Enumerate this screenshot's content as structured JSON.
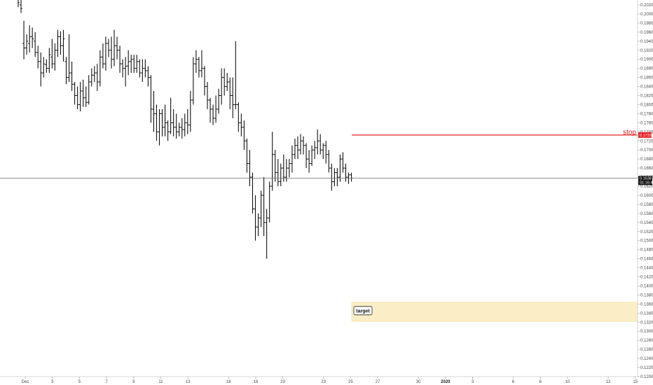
{
  "chart_data": {
    "type": "ohlc",
    "timeframe_note": "",
    "yaxis": {
      "min": 0.12,
      "max": 0.203,
      "ticks": [
        "0.2020",
        "0.2000",
        "0.1980",
        "0.1960",
        "0.1940",
        "0.1920",
        "0.1900",
        "0.1880",
        "0.1860",
        "0.1840",
        "0.1820",
        "0.1800",
        "0.1780",
        "0.1760",
        "0.1740",
        "0.1720",
        "0.1700",
        "0.1680",
        "0.1660",
        "0.1640",
        "0.1620",
        "0.1600",
        "0.1580",
        "0.1560",
        "0.1540",
        "0.1520",
        "0.1500",
        "0.1480",
        "0.1460",
        "0.1440",
        "0.1420",
        "0.1400",
        "0.1380",
        "0.1360",
        "0.1340",
        "0.1320",
        "0.1300",
        "0.1280",
        "0.1260",
        "0.1240",
        "0.1220",
        "0.1200"
      ]
    },
    "xaxis": {
      "ticks": [
        {
          "label": "Dec",
          "x": 0
        },
        {
          "label": "3",
          "x": 2
        },
        {
          "label": "5",
          "x": 4
        },
        {
          "label": "7",
          "x": 6
        },
        {
          "label": "9",
          "x": 8
        },
        {
          "label": "11",
          "x": 10
        },
        {
          "label": "13",
          "x": 12
        },
        {
          "label": "16",
          "x": 15
        },
        {
          "label": "18",
          "x": 17
        },
        {
          "label": "20",
          "x": 19
        },
        {
          "label": "23",
          "x": 22
        },
        {
          "label": "25",
          "x": 24
        },
        {
          "label": "27",
          "x": 26
        },
        {
          "label": "30",
          "x": 29
        },
        {
          "label": "2020",
          "x": 31,
          "bold": true
        },
        {
          "label": "3",
          "x": 33
        },
        {
          "label": "6",
          "x": 36
        },
        {
          "label": "8",
          "x": 38
        },
        {
          "label": "10",
          "x": 40
        },
        {
          "label": "13",
          "x": 43
        },
        {
          "label": "15",
          "x": 45
        }
      ]
    },
    "stop": {
      "label": "stop",
      "price": 0.1733,
      "tag": "0.1733"
    },
    "current_price": {
      "price": 0.1638,
      "tags": [
        "0.1638",
        "01:16:48"
      ]
    },
    "target": {
      "label": "target",
      "top": 0.1364,
      "bottom": 0.1322
    },
    "bars": [
      [
        0.2032,
        0.2035,
        0.2015,
        0.2025
      ],
      [
        0.202,
        0.2032,
        0.2002,
        0.2012
      ],
      [
        0.1935,
        0.1985,
        0.19,
        0.1925
      ],
      [
        0.1925,
        0.1955,
        0.191,
        0.194
      ],
      [
        0.1935,
        0.1975,
        0.1915,
        0.195
      ],
      [
        0.195,
        0.197,
        0.1925,
        0.1945
      ],
      [
        0.194,
        0.196,
        0.1905,
        0.1915
      ],
      [
        0.1915,
        0.193,
        0.188,
        0.1895
      ],
      [
        0.1895,
        0.1915,
        0.184,
        0.187
      ],
      [
        0.187,
        0.1905,
        0.186,
        0.189
      ],
      [
        0.1888,
        0.19,
        0.187,
        0.188
      ],
      [
        0.188,
        0.1925,
        0.187,
        0.191
      ],
      [
        0.1905,
        0.1945,
        0.188,
        0.189
      ],
      [
        0.189,
        0.1935,
        0.1875,
        0.192
      ],
      [
        0.192,
        0.1965,
        0.1905,
        0.195
      ],
      [
        0.195,
        0.1962,
        0.191,
        0.193
      ],
      [
        0.193,
        0.1965,
        0.1895,
        0.1945
      ],
      [
        0.1895,
        0.1905,
        0.1845,
        0.186
      ],
      [
        0.186,
        0.1955,
        0.185,
        0.187
      ],
      [
        0.187,
        0.1895,
        0.183,
        0.1845
      ],
      [
        0.1845,
        0.185,
        0.18,
        0.182
      ],
      [
        0.182,
        0.184,
        0.179,
        0.18
      ],
      [
        0.18,
        0.185,
        0.1785,
        0.183
      ],
      [
        0.183,
        0.1855,
        0.1795,
        0.1815
      ],
      [
        0.1815,
        0.184,
        0.1795,
        0.1805
      ],
      [
        0.1805,
        0.1865,
        0.18,
        0.185
      ],
      [
        0.185,
        0.188,
        0.184,
        0.1865
      ],
      [
        0.1865,
        0.1885,
        0.185,
        0.187
      ],
      [
        0.187,
        0.189,
        0.183,
        0.185
      ],
      [
        0.185,
        0.192,
        0.184,
        0.1905
      ],
      [
        0.1905,
        0.1935,
        0.188,
        0.189
      ],
      [
        0.189,
        0.195,
        0.1875,
        0.1935
      ],
      [
        0.1935,
        0.1945,
        0.1905,
        0.192
      ],
      [
        0.192,
        0.195,
        0.188,
        0.19
      ],
      [
        0.19,
        0.1965,
        0.1885,
        0.193
      ],
      [
        0.193,
        0.195,
        0.19,
        0.192
      ],
      [
        0.192,
        0.193,
        0.187,
        0.189
      ],
      [
        0.189,
        0.19,
        0.186,
        0.188
      ],
      [
        0.188,
        0.1905,
        0.184,
        0.1885
      ],
      [
        0.1885,
        0.192,
        0.1865,
        0.1895
      ],
      [
        0.1895,
        0.191,
        0.187,
        0.19
      ],
      [
        0.19,
        0.191,
        0.187,
        0.188
      ],
      [
        0.188,
        0.191,
        0.187,
        0.1895
      ],
      [
        0.1895,
        0.19,
        0.186,
        0.187
      ],
      [
        0.187,
        0.19,
        0.185,
        0.188
      ],
      [
        0.188,
        0.19,
        0.186,
        0.1875
      ],
      [
        0.1875,
        0.1885,
        0.184,
        0.186
      ],
      [
        0.186,
        0.1865,
        0.176,
        0.179
      ],
      [
        0.179,
        0.183,
        0.174,
        0.178
      ],
      [
        0.178,
        0.18,
        0.172,
        0.174
      ],
      [
        0.174,
        0.179,
        0.171,
        0.178
      ],
      [
        0.178,
        0.179,
        0.173,
        0.175
      ],
      [
        0.175,
        0.18,
        0.173,
        0.176
      ],
      [
        0.176,
        0.1765,
        0.172,
        0.174
      ],
      [
        0.174,
        0.1815,
        0.1735,
        0.176
      ],
      [
        0.176,
        0.179,
        0.173,
        0.175
      ],
      [
        0.175,
        0.178,
        0.1725,
        0.174
      ],
      [
        0.174,
        0.176,
        0.173,
        0.175
      ],
      [
        0.175,
        0.177,
        0.1725,
        0.1745
      ],
      [
        0.1745,
        0.178,
        0.173,
        0.176
      ],
      [
        0.176,
        0.179,
        0.1735,
        0.1755
      ],
      [
        0.1755,
        0.183,
        0.174,
        0.181
      ],
      [
        0.181,
        0.1905,
        0.18,
        0.189
      ],
      [
        0.189,
        0.192,
        0.187,
        0.19
      ],
      [
        0.19,
        0.1905,
        0.186,
        0.1875
      ],
      [
        0.1875,
        0.192,
        0.186,
        0.188
      ],
      [
        0.188,
        0.1885,
        0.182,
        0.184
      ],
      [
        0.184,
        0.185,
        0.179,
        0.181
      ],
      [
        0.181,
        0.1815,
        0.176,
        0.179
      ],
      [
        0.179,
        0.18,
        0.1755,
        0.177
      ],
      [
        0.177,
        0.182,
        0.176,
        0.179
      ],
      [
        0.179,
        0.1835,
        0.178,
        0.182
      ],
      [
        0.182,
        0.188,
        0.18,
        0.186
      ],
      [
        0.186,
        0.188,
        0.182,
        0.184
      ],
      [
        0.184,
        0.187,
        0.183,
        0.185
      ],
      [
        0.185,
        0.186,
        0.179,
        0.182
      ],
      [
        0.182,
        0.186,
        0.177,
        0.18
      ],
      [
        0.18,
        0.194,
        0.179,
        0.18
      ],
      [
        0.18,
        0.1805,
        0.174,
        0.176
      ],
      [
        0.176,
        0.178,
        0.173,
        0.175
      ],
      [
        0.175,
        0.1765,
        0.17,
        0.172
      ],
      [
        0.172,
        0.1725,
        0.165,
        0.167
      ],
      [
        0.167,
        0.17,
        0.162,
        0.164
      ],
      [
        0.164,
        0.165,
        0.156,
        0.157
      ],
      [
        0.157,
        0.16,
        0.15,
        0.153
      ],
      [
        0.153,
        0.156,
        0.151,
        0.155
      ],
      [
        0.155,
        0.161,
        0.153,
        0.16
      ],
      [
        0.16,
        0.164,
        0.151,
        0.154
      ],
      [
        0.154,
        0.157,
        0.146,
        0.155
      ],
      [
        0.155,
        0.163,
        0.154,
        0.162
      ],
      [
        0.162,
        0.174,
        0.161,
        0.169
      ],
      [
        0.169,
        0.17,
        0.163,
        0.165
      ],
      [
        0.165,
        0.168,
        0.162,
        0.163
      ],
      [
        0.163,
        0.167,
        0.162,
        0.166
      ],
      [
        0.166,
        0.169,
        0.163,
        0.164
      ],
      [
        0.164,
        0.168,
        0.163,
        0.166
      ],
      [
        0.166,
        0.168,
        0.164,
        0.167
      ],
      [
        0.167,
        0.171,
        0.165,
        0.169
      ],
      [
        0.169,
        0.1725,
        0.168,
        0.171
      ],
      [
        0.171,
        0.173,
        0.168,
        0.17
      ],
      [
        0.17,
        0.1735,
        0.169,
        0.172
      ],
      [
        0.172,
        0.173,
        0.169,
        0.171
      ],
      [
        0.171,
        0.1715,
        0.166,
        0.168
      ],
      [
        0.168,
        0.17,
        0.165,
        0.167
      ],
      [
        0.167,
        0.171,
        0.1665,
        0.17
      ],
      [
        0.17,
        0.172,
        0.168,
        0.1705
      ],
      [
        0.1705,
        0.1745,
        0.169,
        0.172
      ],
      [
        0.172,
        0.1735,
        0.169,
        0.17
      ],
      [
        0.17,
        0.1715,
        0.168,
        0.171
      ],
      [
        0.171,
        0.172,
        0.167,
        0.169
      ],
      [
        0.169,
        0.17,
        0.165,
        0.166
      ],
      [
        0.166,
        0.167,
        0.161,
        0.163
      ],
      [
        0.163,
        0.166,
        0.162,
        0.165
      ],
      [
        0.165,
        0.166,
        0.162,
        0.164
      ],
      [
        0.164,
        0.169,
        0.163,
        0.168
      ],
      [
        0.168,
        0.1695,
        0.165,
        0.166
      ],
      [
        0.166,
        0.167,
        0.163,
        0.164
      ],
      [
        0.164,
        0.165,
        0.1625,
        0.1645
      ],
      [
        0.1645,
        0.165,
        0.163,
        0.1638
      ]
    ]
  }
}
